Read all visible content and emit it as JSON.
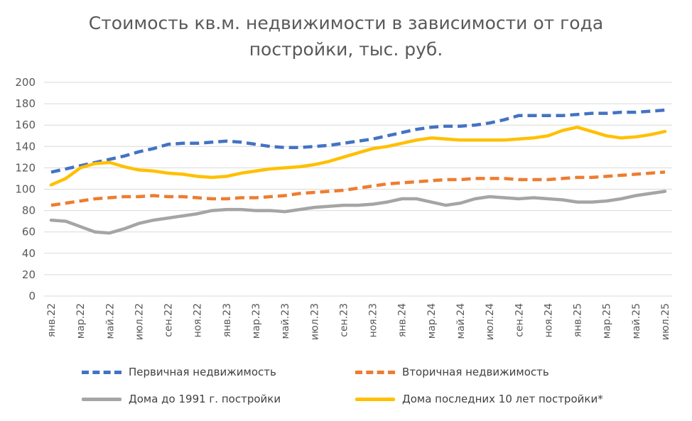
{
  "chart_data": {
    "type": "line",
    "title_lines": [
      "Стоимость кв.м. недвижимости в зависимости от года",
      "постройки, тыс. руб."
    ],
    "ylim": [
      0,
      200
    ],
    "y_ticks": [
      "0",
      "20",
      "40",
      "60",
      "80",
      "100",
      "120",
      "140",
      "160",
      "180",
      "200"
    ],
    "grid": true,
    "legend_position": "bottom",
    "categories": [
      "янв.22",
      "фев.22",
      "мар.22",
      "апр.22",
      "май.22",
      "июн.22",
      "июл.22",
      "авг.22",
      "сен.22",
      "окт.22",
      "ноя.22",
      "дек.22",
      "янв.23",
      "фев.23",
      "мар.23",
      "апр.23",
      "май.23",
      "июн.23",
      "июл.23",
      "авг.23",
      "сен.23",
      "окт.23",
      "ноя.23",
      "дек.23",
      "янв.24",
      "фев.24",
      "мар.24",
      "апр.24",
      "май.24",
      "июн.24",
      "июл.24",
      "авг.24",
      "сен.24",
      "окт.24",
      "ноя.24",
      "дек.24",
      "янв.25",
      "фев.25",
      "мар.25",
      "апр.25",
      "май.25",
      "июн.25",
      "июл.25"
    ],
    "x_tick_labels": [
      "янв.22",
      "мар.22",
      "май.22",
      "июл.22",
      "сен.22",
      "ноя.22",
      "янв.23",
      "мар.23",
      "май.23",
      "июл.23",
      "сен.23",
      "ноя.23",
      "янв.24",
      "мар.24",
      "май.24",
      "июл.24",
      "сен.24",
      "ноя.24",
      "янв.25",
      "мар.25",
      "май.25",
      "июл.25"
    ],
    "series": [
      {
        "name": "Первичная недвижимость",
        "color": "#4472C4",
        "style": "dashed",
        "values": [
          116,
          119,
          122,
          125,
          128,
          131,
          135,
          138,
          142,
          143,
          143,
          144,
          145,
          144,
          142,
          140,
          139,
          139,
          140,
          141,
          143,
          145,
          147,
          150,
          153,
          156,
          158,
          159,
          159,
          160,
          162,
          165,
          169,
          169,
          169,
          169,
          170,
          171,
          171,
          172,
          172,
          173,
          174
        ]
      },
      {
        "name": "Вторичная недвижимость",
        "color": "#ED7D31",
        "style": "dashed",
        "values": [
          85,
          87,
          89,
          91,
          92,
          93,
          93,
          94,
          93,
          93,
          92,
          91,
          91,
          92,
          92,
          93,
          94,
          96,
          97,
          98,
          99,
          101,
          103,
          105,
          106,
          107,
          108,
          109,
          109,
          110,
          110,
          110,
          109,
          109,
          109,
          110,
          111,
          111,
          112,
          113,
          114,
          115,
          116
        ]
      },
      {
        "name": "Дома до 1991 г. постройки",
        "color": "#A5A5A5",
        "style": "solid",
        "values": [
          71,
          70,
          65,
          60,
          59,
          63,
          68,
          71,
          73,
          75,
          77,
          80,
          81,
          81,
          80,
          80,
          79,
          81,
          83,
          84,
          85,
          85,
          86,
          88,
          91,
          91,
          88,
          85,
          87,
          91,
          93,
          92,
          91,
          92,
          91,
          90,
          88,
          88,
          89,
          91,
          94,
          96,
          98
        ]
      },
      {
        "name": "Дома последних 10 лет постройки*",
        "color": "#FFC000",
        "style": "solid",
        "values": [
          104,
          110,
          120,
          124,
          125,
          121,
          118,
          117,
          115,
          114,
          112,
          111,
          112,
          115,
          117,
          119,
          120,
          121,
          123,
          126,
          130,
          134,
          138,
          140,
          143,
          146,
          148,
          147,
          146,
          146,
          146,
          146,
          147,
          148,
          150,
          155,
          158,
          154,
          150,
          148,
          149,
          151,
          154
        ]
      }
    ]
  }
}
